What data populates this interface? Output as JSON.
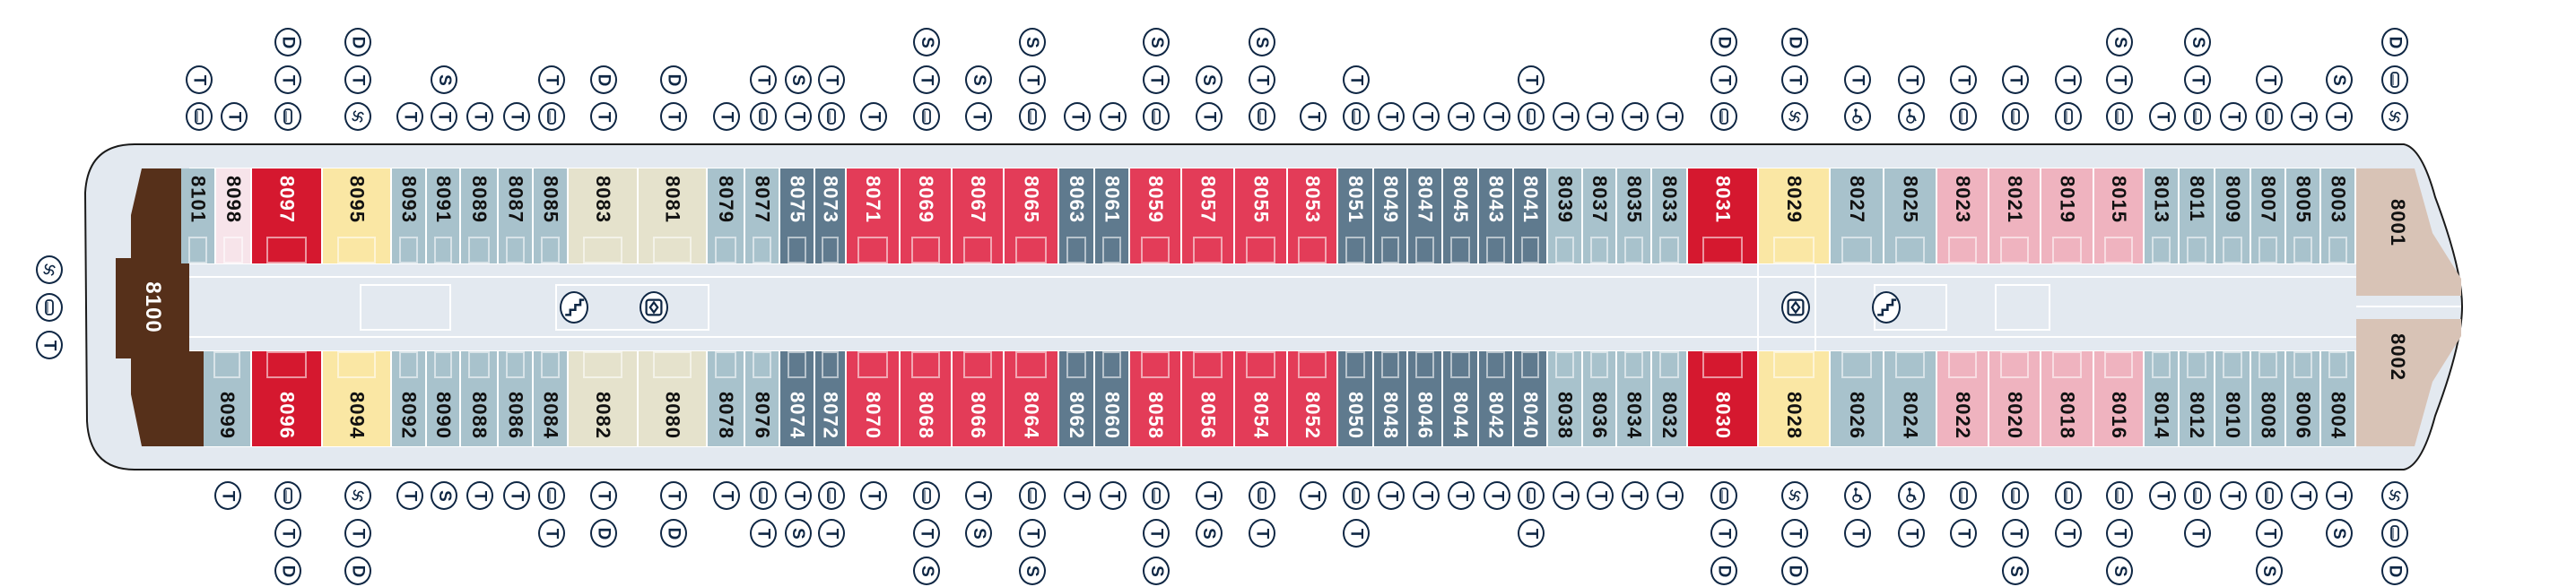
{
  "deck_plan": {
    "categories": {
      "bg": {
        "color": "#a8c2cc",
        "text": "#111111"
      },
      "pl": {
        "color": "#f7e4ea",
        "text": "#111111"
      },
      "r": {
        "color": "#d5182f",
        "text": "#ffffff"
      },
      "y": {
        "color": "#fae7a4",
        "text": "#111111"
      },
      "b": {
        "color": "#e5e2cc",
        "text": "#111111"
      },
      "s": {
        "color": "#5f7a8e",
        "text": "#ffffff"
      },
      "r2": {
        "color": "#e33c58",
        "text": "#ffffff"
      },
      "p": {
        "color": "#efb3bf",
        "text": "#111111"
      },
      "tan": {
        "color": "#d8c3b6",
        "text": "#111111"
      },
      "brown": {
        "color": "#56301a",
        "text": "#ffffff"
      }
    },
    "stern_suite": {
      "number": "8100",
      "cat": "brown",
      "icons": [
        "swirl",
        "bath",
        "T"
      ]
    },
    "bow_suites": [
      {
        "number": "8001",
        "cat": "tan",
        "icons": [
          "D",
          "bath",
          "swirl"
        ]
      },
      {
        "number": "8002",
        "cat": "tan",
        "icons": [
          "swirl",
          "bath",
          "D"
        ]
      }
    ],
    "top_cabins": [
      {
        "number": "8101",
        "cat": "bg",
        "icons": [
          "T",
          "bath"
        ]
      },
      {
        "number": "8098",
        "cat": "pl",
        "icons": [
          "T"
        ]
      },
      {
        "number": "8097",
        "cat": "r",
        "icons": [
          "D",
          "T",
          "bath"
        ]
      },
      {
        "number": "8095",
        "cat": "y",
        "icons": [
          "D",
          "T",
          "swirl"
        ]
      },
      {
        "number": "8093",
        "cat": "bg",
        "icons": [
          "T"
        ]
      },
      {
        "number": "8091",
        "cat": "bg",
        "icons": [
          "S",
          "T"
        ]
      },
      {
        "number": "8089",
        "cat": "bg",
        "icons": [
          "T"
        ]
      },
      {
        "number": "8087",
        "cat": "bg",
        "icons": [
          "T"
        ]
      },
      {
        "number": "8085",
        "cat": "bg",
        "icons": [
          "T",
          "bath"
        ]
      },
      {
        "number": "8083",
        "cat": "b",
        "icons": [
          "D",
          "T"
        ]
      },
      {
        "number": "8081",
        "cat": "b",
        "icons": [
          "D",
          "T"
        ]
      },
      {
        "number": "8079",
        "cat": "bg",
        "icons": [
          "T"
        ]
      },
      {
        "number": "8077",
        "cat": "bg",
        "icons": [
          "T",
          "bath"
        ]
      },
      {
        "number": "8075",
        "cat": "s",
        "icons": [
          "S",
          "T"
        ]
      },
      {
        "number": "8073",
        "cat": "s",
        "icons": [
          "T",
          "bath"
        ]
      },
      {
        "number": "8071",
        "cat": "r2",
        "icons": [
          "T"
        ]
      },
      {
        "number": "8069",
        "cat": "r2",
        "icons": [
          "S",
          "T",
          "bath"
        ]
      },
      {
        "number": "8067",
        "cat": "r2",
        "icons": [
          "S",
          "T"
        ]
      },
      {
        "number": "8065",
        "cat": "r2",
        "icons": [
          "S",
          "T",
          "bath"
        ]
      },
      {
        "number": "8063",
        "cat": "s",
        "icons": [
          "T"
        ]
      },
      {
        "number": "8061",
        "cat": "s",
        "icons": [
          "T"
        ]
      },
      {
        "number": "8059",
        "cat": "r2",
        "icons": [
          "S",
          "T",
          "bath"
        ]
      },
      {
        "number": "8057",
        "cat": "r2",
        "icons": [
          "S",
          "T"
        ]
      },
      {
        "number": "8055",
        "cat": "r2",
        "icons": [
          "S",
          "T",
          "bath"
        ]
      },
      {
        "number": "8053",
        "cat": "r2",
        "icons": [
          "T"
        ]
      },
      {
        "number": "8051",
        "cat": "s",
        "icons": [
          "T",
          "bath"
        ]
      },
      {
        "number": "8049",
        "cat": "s",
        "icons": [
          "T"
        ]
      },
      {
        "number": "8047",
        "cat": "s",
        "icons": [
          "T"
        ]
      },
      {
        "number": "8045",
        "cat": "s",
        "icons": [
          "T"
        ]
      },
      {
        "number": "8043",
        "cat": "s",
        "icons": [
          "T"
        ]
      },
      {
        "number": "8041",
        "cat": "s",
        "icons": [
          "T",
          "bath"
        ]
      },
      {
        "number": "8039",
        "cat": "bg",
        "icons": [
          "T"
        ]
      },
      {
        "number": "8037",
        "cat": "bg",
        "icons": [
          "T"
        ]
      },
      {
        "number": "8035",
        "cat": "bg",
        "icons": [
          "T"
        ]
      },
      {
        "number": "8033",
        "cat": "bg",
        "icons": [
          "T"
        ]
      },
      {
        "number": "8031",
        "cat": "r",
        "icons": [
          "D",
          "T",
          "bath"
        ]
      },
      {
        "number": "8029",
        "cat": "y",
        "icons": [
          "D",
          "T",
          "swirl"
        ]
      },
      {
        "number": "8027",
        "cat": "bg",
        "icons": [
          "T",
          "wheelchair"
        ]
      },
      {
        "number": "8025",
        "cat": "bg",
        "icons": [
          "T",
          "wheelchair"
        ]
      },
      {
        "number": "8023",
        "cat": "p",
        "icons": [
          "T",
          "bath"
        ]
      },
      {
        "number": "8021",
        "cat": "p",
        "icons": [
          "T",
          "bath"
        ]
      },
      {
        "number": "8019",
        "cat": "p",
        "icons": [
          "T",
          "bath"
        ]
      },
      {
        "number": "8015",
        "cat": "p",
        "icons": [
          "S",
          "T",
          "bath"
        ]
      },
      {
        "number": "8013",
        "cat": "bg",
        "icons": [
          "T"
        ]
      },
      {
        "number": "8011",
        "cat": "bg",
        "icons": [
          "S",
          "T",
          "bath"
        ]
      },
      {
        "number": "8009",
        "cat": "bg",
        "icons": [
          "T"
        ]
      },
      {
        "number": "8007",
        "cat": "bg",
        "icons": [
          "T",
          "bath"
        ]
      },
      {
        "number": "8005",
        "cat": "bg",
        "icons": [
          "T"
        ]
      },
      {
        "number": "8003",
        "cat": "bg",
        "icons": [
          "S",
          "T"
        ]
      }
    ],
    "bottom_cabins": [
      {
        "number": "8099",
        "cat": "bg",
        "icons": [
          "T"
        ]
      },
      {
        "number": "8096",
        "cat": "r",
        "icons": [
          "bath",
          "T",
          "D"
        ]
      },
      {
        "number": "8094",
        "cat": "y",
        "icons": [
          "swirl",
          "T",
          "D"
        ]
      },
      {
        "number": "8092",
        "cat": "bg",
        "icons": [
          "T"
        ]
      },
      {
        "number": "8090",
        "cat": "bg",
        "icons": [
          "S"
        ]
      },
      {
        "number": "8088",
        "cat": "bg",
        "icons": [
          "T"
        ]
      },
      {
        "number": "8086",
        "cat": "bg",
        "icons": [
          "T"
        ]
      },
      {
        "number": "8084",
        "cat": "bg",
        "icons": [
          "bath",
          "T"
        ]
      },
      {
        "number": "8082",
        "cat": "b",
        "icons": [
          "T",
          "D"
        ]
      },
      {
        "number": "8080",
        "cat": "b",
        "icons": [
          "T",
          "D"
        ]
      },
      {
        "number": "8078",
        "cat": "bg",
        "icons": [
          "T"
        ]
      },
      {
        "number": "8076",
        "cat": "bg",
        "icons": [
          "bath",
          "T"
        ]
      },
      {
        "number": "8074",
        "cat": "s",
        "icons": [
          "T",
          "S"
        ]
      },
      {
        "number": "8072",
        "cat": "s",
        "icons": [
          "bath",
          "T"
        ]
      },
      {
        "number": "8070",
        "cat": "r2",
        "icons": [
          "T"
        ]
      },
      {
        "number": "8068",
        "cat": "r2",
        "icons": [
          "bath",
          "T",
          "S"
        ]
      },
      {
        "number": "8066",
        "cat": "r2",
        "icons": [
          "T",
          "S"
        ]
      },
      {
        "number": "8064",
        "cat": "r2",
        "icons": [
          "bath",
          "T",
          "S"
        ]
      },
      {
        "number": "8062",
        "cat": "s",
        "icons": [
          "T"
        ]
      },
      {
        "number": "8060",
        "cat": "s",
        "icons": [
          "T"
        ]
      },
      {
        "number": "8058",
        "cat": "r2",
        "icons": [
          "bath",
          "T",
          "S"
        ]
      },
      {
        "number": "8056",
        "cat": "r2",
        "icons": [
          "T",
          "S"
        ]
      },
      {
        "number": "8054",
        "cat": "r2",
        "icons": [
          "bath",
          "T"
        ]
      },
      {
        "number": "8052",
        "cat": "r2",
        "icons": [
          "T"
        ]
      },
      {
        "number": "8050",
        "cat": "s",
        "icons": [
          "bath",
          "T"
        ]
      },
      {
        "number": "8048",
        "cat": "s",
        "icons": [
          "T"
        ]
      },
      {
        "number": "8046",
        "cat": "s",
        "icons": [
          "T"
        ]
      },
      {
        "number": "8044",
        "cat": "s",
        "icons": [
          "T"
        ]
      },
      {
        "number": "8042",
        "cat": "s",
        "icons": [
          "T"
        ]
      },
      {
        "number": "8040",
        "cat": "s",
        "icons": [
          "bath",
          "T"
        ]
      },
      {
        "number": "8038",
        "cat": "bg",
        "icons": [
          "T"
        ]
      },
      {
        "number": "8036",
        "cat": "bg",
        "icons": [
          "T"
        ]
      },
      {
        "number": "8034",
        "cat": "bg",
        "icons": [
          "T"
        ]
      },
      {
        "number": "8032",
        "cat": "bg",
        "icons": [
          "T"
        ]
      },
      {
        "number": "8030",
        "cat": "r",
        "icons": [
          "bath",
          "T",
          "D"
        ]
      },
      {
        "number": "8028",
        "cat": "y",
        "icons": [
          "swirl",
          "T",
          "D"
        ]
      },
      {
        "number": "8026",
        "cat": "bg",
        "icons": [
          "wheelchair",
          "T"
        ]
      },
      {
        "number": "8024",
        "cat": "bg",
        "icons": [
          "wheelchair",
          "T"
        ]
      },
      {
        "number": "8022",
        "cat": "p",
        "icons": [
          "bath",
          "T"
        ]
      },
      {
        "number": "8020",
        "cat": "p",
        "icons": [
          "bath",
          "T",
          "S"
        ]
      },
      {
        "number": "8018",
        "cat": "p",
        "icons": [
          "bath",
          "T"
        ]
      },
      {
        "number": "8016",
        "cat": "p",
        "icons": [
          "bath",
          "T",
          "S"
        ]
      },
      {
        "number": "8014",
        "cat": "bg",
        "icons": [
          "T"
        ]
      },
      {
        "number": "8012",
        "cat": "bg",
        "icons": [
          "bath",
          "T"
        ]
      },
      {
        "number": "8010",
        "cat": "bg",
        "icons": [
          "T"
        ]
      },
      {
        "number": "8008",
        "cat": "bg",
        "icons": [
          "bath",
          "T",
          "S"
        ]
      },
      {
        "number": "8006",
        "cat": "bg",
        "icons": [
          "T"
        ]
      },
      {
        "number": "8004",
        "cat": "bg",
        "icons": [
          "T",
          "S"
        ]
      }
    ],
    "corridor_icons": [
      "stairs",
      "elevator",
      "elevator",
      "stairs"
    ]
  }
}
